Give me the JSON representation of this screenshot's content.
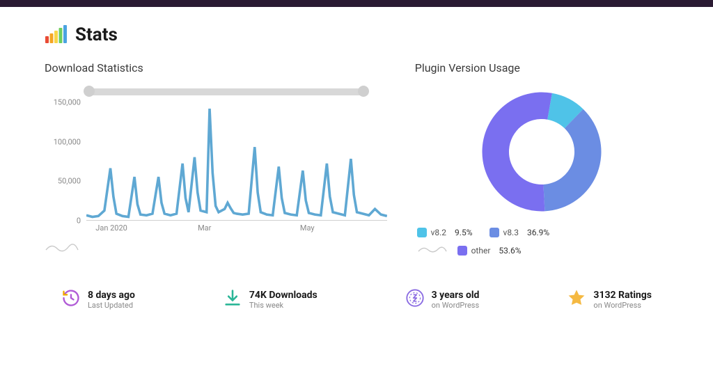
{
  "page": {
    "title": "Stats",
    "background": "#ffffff",
    "topbar_color": "#2a1a33"
  },
  "header_icon": {
    "bars": [
      "#e94b35",
      "#f5a623",
      "#f8d548",
      "#6fcf5d",
      "#4aa3e0"
    ]
  },
  "download_chart": {
    "title": "Download Statistics",
    "type": "line",
    "ylim": [
      0,
      150000
    ],
    "yticks": [
      0,
      50000,
      100000,
      150000
    ],
    "ytick_labels": [
      "0",
      "50,000",
      "100,000",
      "150,000"
    ],
    "xticks_rel": [
      0.04,
      0.38,
      0.72
    ],
    "xtick_labels": [
      "Jan 2020",
      "Mar",
      "May"
    ],
    "line_color": "#5fa8d3",
    "line_width": 1.2,
    "axis_color": "#d0d0d0",
    "text_color": "#888888",
    "slider_track_color": "#d8d8d8",
    "slider_handle_color": "#cfcfcf",
    "data": [
      [
        0.0,
        6000
      ],
      [
        0.02,
        4000
      ],
      [
        0.04,
        5000
      ],
      [
        0.06,
        12000
      ],
      [
        0.08,
        66000
      ],
      [
        0.09,
        30000
      ],
      [
        0.1,
        8000
      ],
      [
        0.12,
        5000
      ],
      [
        0.14,
        4000
      ],
      [
        0.16,
        55000
      ],
      [
        0.17,
        20000
      ],
      [
        0.18,
        7000
      ],
      [
        0.2,
        6000
      ],
      [
        0.22,
        8000
      ],
      [
        0.24,
        55000
      ],
      [
        0.25,
        22000
      ],
      [
        0.26,
        8000
      ],
      [
        0.28,
        6000
      ],
      [
        0.3,
        8000
      ],
      [
        0.32,
        72000
      ],
      [
        0.33,
        28000
      ],
      [
        0.34,
        10000
      ],
      [
        0.36,
        80000
      ],
      [
        0.37,
        35000
      ],
      [
        0.38,
        12000
      ],
      [
        0.4,
        10000
      ],
      [
        0.41,
        142000
      ],
      [
        0.42,
        60000
      ],
      [
        0.43,
        18000
      ],
      [
        0.44,
        10000
      ],
      [
        0.46,
        14000
      ],
      [
        0.47,
        22000
      ],
      [
        0.48,
        15000
      ],
      [
        0.49,
        9000
      ],
      [
        0.5,
        8000
      ],
      [
        0.52,
        7000
      ],
      [
        0.54,
        8000
      ],
      [
        0.56,
        93000
      ],
      [
        0.57,
        35000
      ],
      [
        0.58,
        10000
      ],
      [
        0.6,
        7000
      ],
      [
        0.62,
        6000
      ],
      [
        0.64,
        68000
      ],
      [
        0.65,
        28000
      ],
      [
        0.66,
        9000
      ],
      [
        0.68,
        7000
      ],
      [
        0.7,
        6000
      ],
      [
        0.72,
        63000
      ],
      [
        0.73,
        25000
      ],
      [
        0.74,
        9000
      ],
      [
        0.76,
        7000
      ],
      [
        0.78,
        6000
      ],
      [
        0.8,
        72000
      ],
      [
        0.81,
        30000
      ],
      [
        0.82,
        10000
      ],
      [
        0.84,
        8000
      ],
      [
        0.86,
        6000
      ],
      [
        0.88,
        78000
      ],
      [
        0.89,
        32000
      ],
      [
        0.9,
        10000
      ],
      [
        0.92,
        8000
      ],
      [
        0.94,
        6000
      ],
      [
        0.96,
        14000
      ],
      [
        0.98,
        7000
      ],
      [
        1.0,
        5000
      ]
    ]
  },
  "version_chart": {
    "title": "Plugin Version Usage",
    "type": "donut",
    "inner_radius": 0.55,
    "slices": [
      {
        "label": "v8.2",
        "value": 9.5,
        "pct": "9.5%",
        "color": "#4fc3e8"
      },
      {
        "label": "v8.3",
        "value": 36.9,
        "pct": "36.9%",
        "color": "#6b8de3"
      },
      {
        "label": "other",
        "value": 53.6,
        "pct": "53.6%",
        "color": "#7a6ff0"
      }
    ],
    "start_angle_deg": -80
  },
  "stats": {
    "last_updated": {
      "value": "8 days ago",
      "sub": "Last Updated",
      "icon_color": "#b05ad6"
    },
    "downloads": {
      "value": "74K Downloads",
      "sub": "This week",
      "icon_color": "#2bb697"
    },
    "age": {
      "value": "3 years old",
      "sub": "on WordPress",
      "icon_color": "#8a6be2"
    },
    "ratings": {
      "value": "3132 Ratings",
      "sub": "on WordPress",
      "icon_color": "#f5b942"
    }
  }
}
